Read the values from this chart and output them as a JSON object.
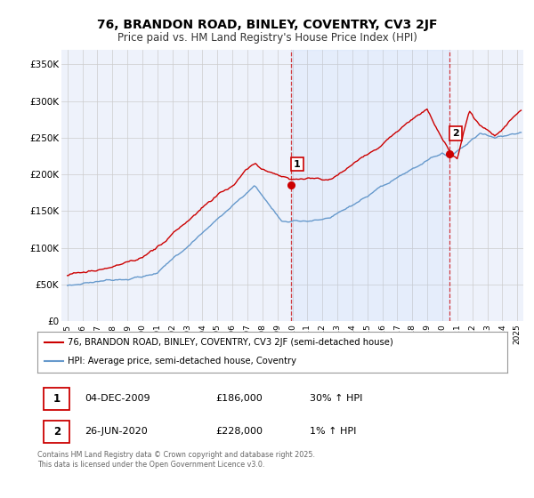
{
  "title": "76, BRANDON ROAD, BINLEY, COVENTRY, CV3 2JF",
  "subtitle": "Price paid vs. HM Land Registry's House Price Index (HPI)",
  "legend_line1": "76, BRANDON ROAD, BINLEY, COVENTRY, CV3 2JF (semi-detached house)",
  "legend_line2": "HPI: Average price, semi-detached house, Coventry",
  "sale1_date": "04-DEC-2009",
  "sale1_price": "£186,000",
  "sale1_hpi": "30% ↑ HPI",
  "sale2_date": "26-JUN-2020",
  "sale2_price": "£228,000",
  "sale2_hpi": "1% ↑ HPI",
  "footer": "Contains HM Land Registry data © Crown copyright and database right 2025.\nThis data is licensed under the Open Government Licence v3.0.",
  "red_color": "#cc0000",
  "blue_color": "#6699cc",
  "bg_color": "#eef2fb",
  "plot_bg": "#ffffff",
  "grid_color": "#cccccc",
  "vline1_x": 2009.92,
  "vline2_x": 2020.49,
  "sale1_y": 186000,
  "sale2_y": 228000,
  "ylim": [
    0,
    370000
  ],
  "xlim": [
    1994.6,
    2025.4
  ],
  "yticks": [
    0,
    50000,
    100000,
    150000,
    200000,
    250000,
    300000,
    350000
  ],
  "ytick_labels": [
    "£0",
    "£50K",
    "£100K",
    "£150K",
    "£200K",
    "£250K",
    "£300K",
    "£350K"
  ],
  "xticks": [
    1995,
    1996,
    1997,
    1998,
    1999,
    2000,
    2001,
    2002,
    2003,
    2004,
    2005,
    2006,
    2007,
    2008,
    2009,
    2010,
    2011,
    2012,
    2013,
    2014,
    2015,
    2016,
    2017,
    2018,
    2019,
    2020,
    2021,
    2022,
    2023,
    2024,
    2025
  ]
}
